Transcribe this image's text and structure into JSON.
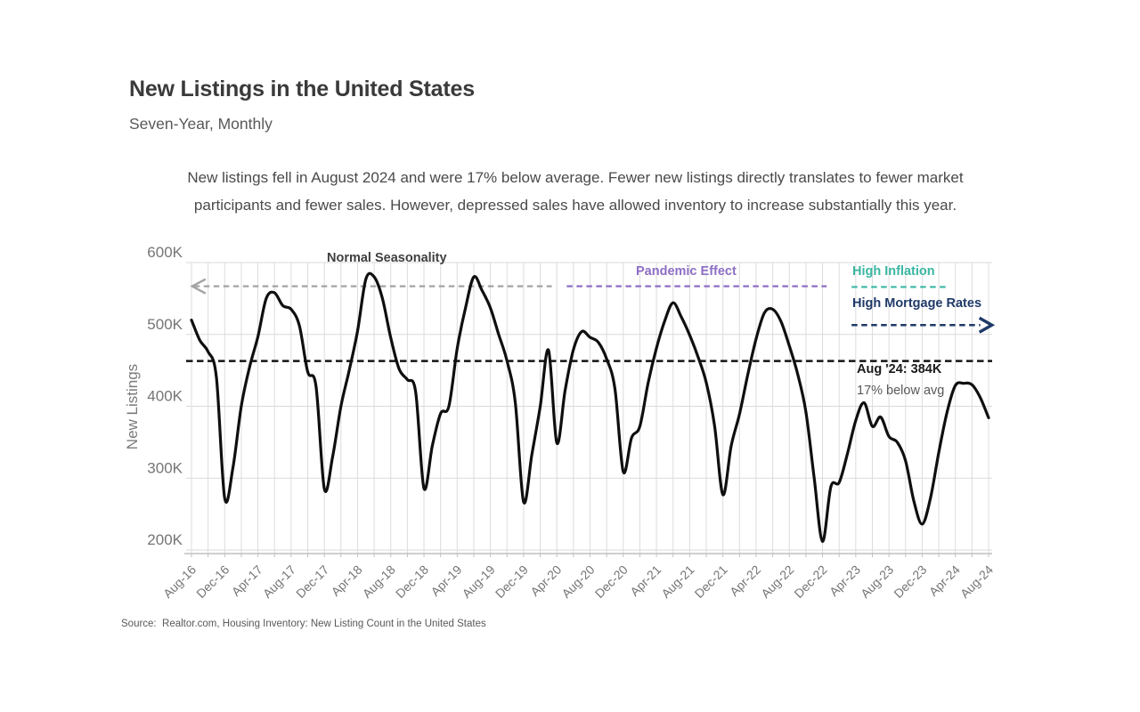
{
  "header": {
    "title": "New Listings in the United States",
    "subtitle": "Seven-Year, Monthly"
  },
  "main": {
    "description": {
      "lines": [
        "New listings fell in August 2024 and were 17% below average. Fewer new listings directly translates to fewer market",
        "participants and fewer sales. However, depressed sales have allowed inventory to increase substantially this year."
      ]
    }
  },
  "source": {
    "text": "Source:  Realtor.com, Housing Inventory: New Listing Count in the United States"
  },
  "chart_data": {
    "type": "line",
    "title": "New Listings in the United States",
    "ylabel": "New Listings",
    "xlabel": "",
    "unit": "thousands of listings (K)",
    "frequency": "monthly",
    "x_start": "Aug-2016",
    "x_end": "Aug-2024",
    "ylim": [
      200,
      600
    ],
    "grid": "on",
    "x_tick_labels": [
      "Aug-16",
      "Dec-16",
      "Apr-17",
      "Aug-17",
      "Dec-17",
      "Apr-18",
      "Aug-18",
      "Dec-18",
      "Apr-19",
      "Aug-19",
      "Dec-19",
      "Apr-20",
      "Aug-20",
      "Dec-20",
      "Apr-21",
      "Aug-21",
      "Dec-21",
      "Apr-22",
      "Aug-22",
      "Dec-22",
      "Apr-23",
      "Aug-23",
      "Dec-23",
      "Apr-24",
      "Aug-24"
    ],
    "y_ticks": [
      {
        "label": "600K",
        "value": 600
      },
      {
        "label": "500K",
        "value": 500
      },
      {
        "label": "400K",
        "value": 400
      },
      {
        "label": "300K",
        "value": 300
      },
      {
        "label": "200K",
        "value": 200
      }
    ],
    "series": [
      {
        "name": "New Listings (monthly, K)",
        "color": "#0f0f0f",
        "values": [
          520,
          492,
          476,
          440,
          272,
          315,
          400,
          455,
          497,
          550,
          558,
          540,
          535,
          512,
          448,
          428,
          285,
          330,
          400,
          450,
          505,
          577,
          580,
          550,
          495,
          452,
          437,
          420,
          286,
          345,
          390,
          400,
          480,
          537,
          580,
          561,
          537,
          500,
          463,
          405,
          267,
          333,
          400,
          478,
          349,
          422,
          479,
          504,
          496,
          489,
          466,
          424,
          309,
          356,
          372,
          433,
          481,
          519,
          544,
          524,
          499,
          469,
          433,
          373,
          277,
          345,
          389,
          444,
          494,
          530,
          535,
          518,
          484,
          445,
          392,
          300,
          212,
          288,
          294,
          334,
          380,
          405,
          372,
          385,
          358,
          350,
          324,
          268,
          236,
          272,
          336,
          392,
          429,
          432,
          430,
          412,
          384
        ]
      }
    ],
    "average_line": {
      "value": 463,
      "color": "#141414",
      "style": "dashed",
      "label": "Aug '24: 384K",
      "sublabel": "17% below avg"
    },
    "annotations": {
      "normal_seasonality": {
        "label": "Normal Seasonality",
        "color": "#3f3f3f"
      },
      "pandemic_effect": {
        "label": "Pandemic Effect",
        "color": "#8d6ec5"
      },
      "high_inflation": {
        "label": "High Inflation",
        "color": "#3ab6a2"
      },
      "high_mortgage_rates": {
        "label": "High Mortgage Rates",
        "color": "#1f3a68"
      },
      "lines": [
        {
          "name": "normal-seasonality",
          "color": "#a3a3a3",
          "y_value": 567,
          "month_span": [
            0.3,
            43.4
          ],
          "arrow": "left",
          "width": 2.2
        },
        {
          "name": "pandemic-effect",
          "color": "#8d6ec5",
          "y_value": 567,
          "month_span": [
            45.2,
            76.5
          ],
          "width": 2.2
        },
        {
          "name": "high-inflation",
          "color": "#3ab6a2",
          "y_value": 566,
          "month_span": [
            79.5,
            91.0
          ],
          "width": 2.2
        },
        {
          "name": "high-mortgage-rates",
          "color": "#1f3a68",
          "y_value": 513,
          "month_span": [
            79.5,
            95.0
          ],
          "arrow": "right",
          "width": 2.6
        }
      ]
    },
    "last_point": {
      "x": "Aug-24",
      "value": 384
    }
  }
}
